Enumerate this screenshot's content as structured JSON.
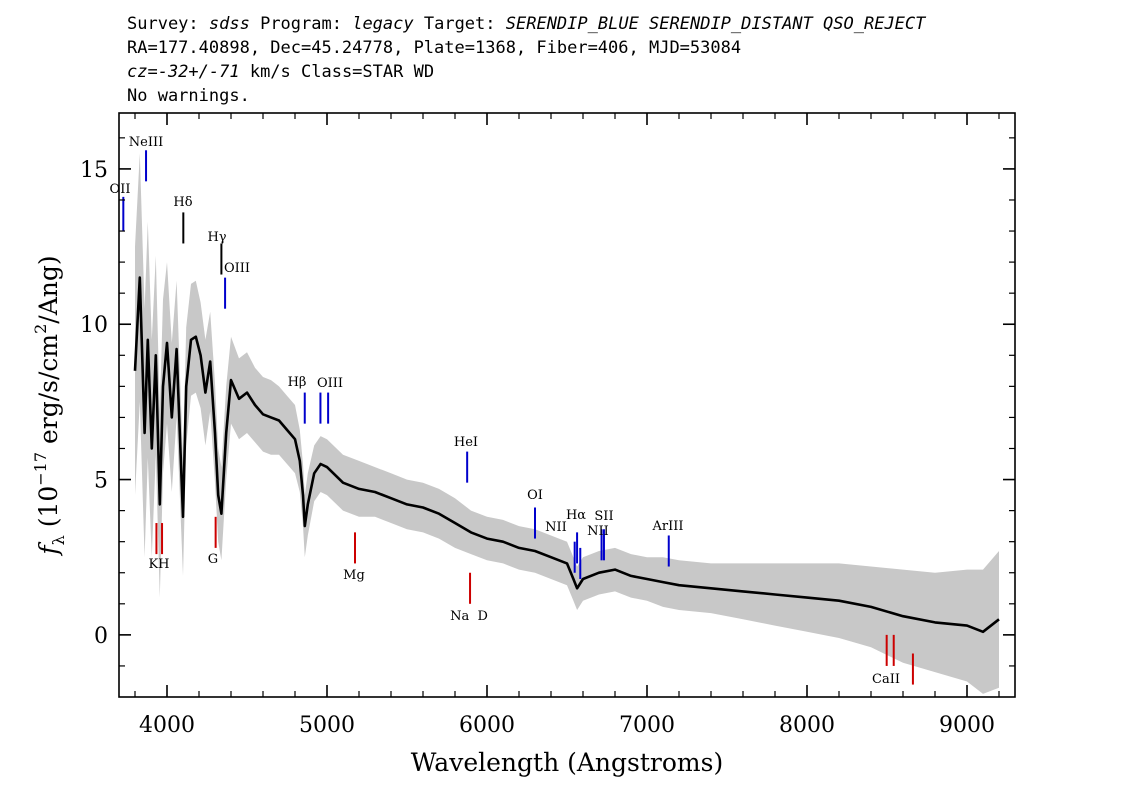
{
  "header": {
    "line1": {
      "survey_label": "Survey: ",
      "survey_value": "sdss",
      "program_label": " Program: ",
      "program_value": "legacy",
      "target_label": " Target: ",
      "target_value": "SERENDIP_BLUE SERENDIP_DISTANT QSO_REJECT"
    },
    "line2": "RA=177.40898, Dec=45.24778, Plate=1368, Fiber=406, MJD=53084",
    "line3": {
      "cz_value": "cz=-32+/-71",
      "cz_suffix": " km/s Class=STAR WD"
    },
    "line4": "No warnings."
  },
  "chart_data": {
    "type": "line",
    "xlabel": "Wavelength (Angstroms)",
    "ylabel": "f_λ (10^-17 erg/s/cm^2/Ang)",
    "xlim": [
      3700,
      9300
    ],
    "ylim": [
      -2,
      16.8
    ],
    "xticks": [
      4000,
      5000,
      6000,
      7000,
      8000,
      9000
    ],
    "yticks": [
      0,
      5,
      10,
      15
    ],
    "grid": false,
    "series": [
      {
        "style": "flux",
        "color": "#000000",
        "x": [
          3800,
          3830,
          3860,
          3880,
          3905,
          3930,
          3955,
          3975,
          4000,
          4030,
          4060,
          4080,
          4100,
          4120,
          4150,
          4180,
          4210,
          4240,
          4270,
          4300,
          4320,
          4340,
          4370,
          4400,
          4450,
          4500,
          4550,
          4600,
          4650,
          4700,
          4750,
          4800,
          4830,
          4850,
          4861,
          4880,
          4920,
          4960,
          5000,
          5100,
          5200,
          5300,
          5400,
          5500,
          5600,
          5700,
          5800,
          5900,
          6000,
          6100,
          6200,
          6300,
          6400,
          6500,
          6540,
          6563,
          6600,
          6700,
          6800,
          6900,
          7000,
          7100,
          7200,
          7400,
          7600,
          7800,
          8000,
          8200,
          8400,
          8600,
          8800,
          9000,
          9100,
          9200
        ],
        "y": [
          8.5,
          11.5,
          6.5,
          9.5,
          6.0,
          9.0,
          4.2,
          8.0,
          9.4,
          7.0,
          9.2,
          6.5,
          3.8,
          8.0,
          9.5,
          9.6,
          9.0,
          7.8,
          8.8,
          6.5,
          4.5,
          3.9,
          6.5,
          8.2,
          7.6,
          7.8,
          7.4,
          7.1,
          7.0,
          6.9,
          6.6,
          6.3,
          5.6,
          4.5,
          3.5,
          4.2,
          5.2,
          5.5,
          5.4,
          4.9,
          4.7,
          4.6,
          4.4,
          4.2,
          4.1,
          3.9,
          3.6,
          3.3,
          3.1,
          3.0,
          2.8,
          2.7,
          2.5,
          2.3,
          1.8,
          1.5,
          1.8,
          2.0,
          2.1,
          1.9,
          1.8,
          1.7,
          1.6,
          1.5,
          1.4,
          1.3,
          1.2,
          1.1,
          0.9,
          0.6,
          0.4,
          0.3,
          0.1,
          0.5
        ]
      },
      {
        "style": "error band",
        "color": "#c8c8c8",
        "x": [
          3800,
          3830,
          3860,
          3880,
          3905,
          3930,
          3955,
          3975,
          4000,
          4030,
          4060,
          4080,
          4100,
          4120,
          4150,
          4180,
          4210,
          4240,
          4270,
          4300,
          4320,
          4340,
          4370,
          4400,
          4450,
          4500,
          4550,
          4600,
          4650,
          4700,
          4750,
          4800,
          4830,
          4850,
          4861,
          4880,
          4920,
          4960,
          5000,
          5100,
          5200,
          5300,
          5400,
          5500,
          5600,
          5700,
          5800,
          5900,
          6000,
          6100,
          6200,
          6300,
          6400,
          6500,
          6540,
          6563,
          6600,
          6700,
          6800,
          6900,
          7000,
          7100,
          7200,
          7400,
          7600,
          7800,
          8000,
          8200,
          8400,
          8600,
          8800,
          9000,
          9100,
          9200
        ],
        "spread": [
          4.0,
          4.0,
          4.0,
          3.8,
          3.5,
          3.2,
          3.0,
          2.8,
          2.6,
          2.4,
          2.2,
          2.0,
          1.9,
          1.9,
          1.8,
          1.8,
          1.7,
          1.7,
          1.6,
          1.6,
          1.5,
          1.5,
          1.5,
          1.4,
          1.3,
          1.3,
          1.2,
          1.2,
          1.2,
          1.1,
          1.1,
          1.1,
          1.0,
          1.0,
          1.0,
          1.0,
          0.9,
          0.9,
          0.9,
          0.9,
          0.9,
          0.8,
          0.8,
          0.8,
          0.8,
          0.8,
          0.8,
          0.7,
          0.7,
          0.7,
          0.7,
          0.7,
          0.7,
          0.7,
          0.7,
          0.7,
          0.7,
          0.7,
          0.7,
          0.7,
          0.7,
          0.8,
          0.8,
          0.8,
          0.9,
          1.0,
          1.1,
          1.2,
          1.3,
          1.5,
          1.6,
          1.8,
          2.0,
          2.2
        ]
      }
    ],
    "emission_lines": [
      {
        "label": "OII",
        "x": 3727,
        "y_from": 13.0,
        "y_to": 14.1,
        "color": "#0000cc"
      },
      {
        "label": "NeIII",
        "x": 3869,
        "y_from": 14.6,
        "y_to": 15.6,
        "color": "#0000cc"
      },
      {
        "label": "Hδ",
        "x": 4102,
        "y_from": 12.6,
        "y_to": 13.6,
        "color": "#000000"
      },
      {
        "label": "Hγ",
        "x": 4340,
        "y_from": 11.6,
        "y_to": 12.6,
        "color": "#000000"
      },
      {
        "label": "OIII",
        "x": 4363,
        "y_from": 10.5,
        "y_to": 11.5,
        "color": "#0000cc"
      },
      {
        "label": "Hβ",
        "x": 4861,
        "y_from": 6.8,
        "y_to": 7.8,
        "color": "#0000cc"
      },
      {
        "label": "OIII",
        "x": 4959,
        "y_from": 6.8,
        "y_to": 7.8,
        "color": "#0000cc"
      },
      {
        "label": "OIII",
        "x": 5007,
        "y_from": 6.8,
        "y_to": 7.8,
        "color": "#0000cc"
      },
      {
        "label": "HeI",
        "x": 5876,
        "y_from": 4.9,
        "y_to": 5.9,
        "color": "#0000cc"
      },
      {
        "label": "OI",
        "x": 6300,
        "y_from": 3.1,
        "y_to": 4.1,
        "color": "#0000cc"
      },
      {
        "label": "NII",
        "x": 6548,
        "y_from": 2.0,
        "y_to": 3.0,
        "color": "#0000cc"
      },
      {
        "label": "Hα",
        "x": 6563,
        "y_from": 2.3,
        "y_to": 3.3,
        "color": "#0000cc"
      },
      {
        "label": "NII",
        "x": 6583,
        "y_from": 1.8,
        "y_to": 2.8,
        "color": "#0000cc"
      },
      {
        "label": "SII",
        "x": 6716,
        "y_from": 2.4,
        "y_to": 3.4,
        "color": "#0000cc"
      },
      {
        "label": "SII",
        "x": 6731,
        "y_from": 2.4,
        "y_to": 3.4,
        "color": "#0000cc"
      },
      {
        "label": "ArIII",
        "x": 7136,
        "y_from": 2.2,
        "y_to": 3.2,
        "color": "#0000cc"
      }
    ],
    "absorption_lines": [
      {
        "label": "K",
        "x": 3934,
        "y_from": 2.6,
        "y_to": 3.6,
        "color": "#cc0000"
      },
      {
        "label": "H",
        "x": 3969,
        "y_from": 2.6,
        "y_to": 3.6,
        "color": "#cc0000"
      },
      {
        "label": "G",
        "x": 4304,
        "y_from": 2.8,
        "y_to": 3.8,
        "color": "#cc0000"
      },
      {
        "label": "Mg",
        "x": 5175,
        "y_from": 2.3,
        "y_to": 3.3,
        "color": "#cc0000"
      },
      {
        "label": "Na",
        "x": 5894,
        "y_from": 1.0,
        "y_to": 2.0,
        "color": "#cc0000"
      },
      {
        "label": "CaII",
        "x": 8498,
        "y_from": -1.0,
        "y_to": 0.0,
        "color": "#cc0000"
      },
      {
        "label": "CaII",
        "x": 8542,
        "y_from": -1.0,
        "y_to": 0.0,
        "color": "#cc0000"
      },
      {
        "label": "CaII",
        "x": 8662,
        "y_from": -1.6,
        "y_to": -0.6,
        "color": "#cc0000"
      }
    ],
    "line_label_text": {
      "OII": "OII",
      "NeIII": "NeIII",
      "Hdelta": "Hδ",
      "Hgamma": "Hγ",
      "OIII_a": "OIII",
      "Hbeta": "Hβ",
      "OIII_b": "OIII",
      "HeI": "HeI",
      "OI": "OI",
      "NII_a": "NII",
      "Halpha": "Hα",
      "SII": "SII",
      "NII_b": "NII",
      "ArIII": "ArIII",
      "KH": "KH",
      "G": "G",
      "Mg": "Mg",
      "NaD": "Na  D",
      "CaII": "CaII"
    }
  }
}
